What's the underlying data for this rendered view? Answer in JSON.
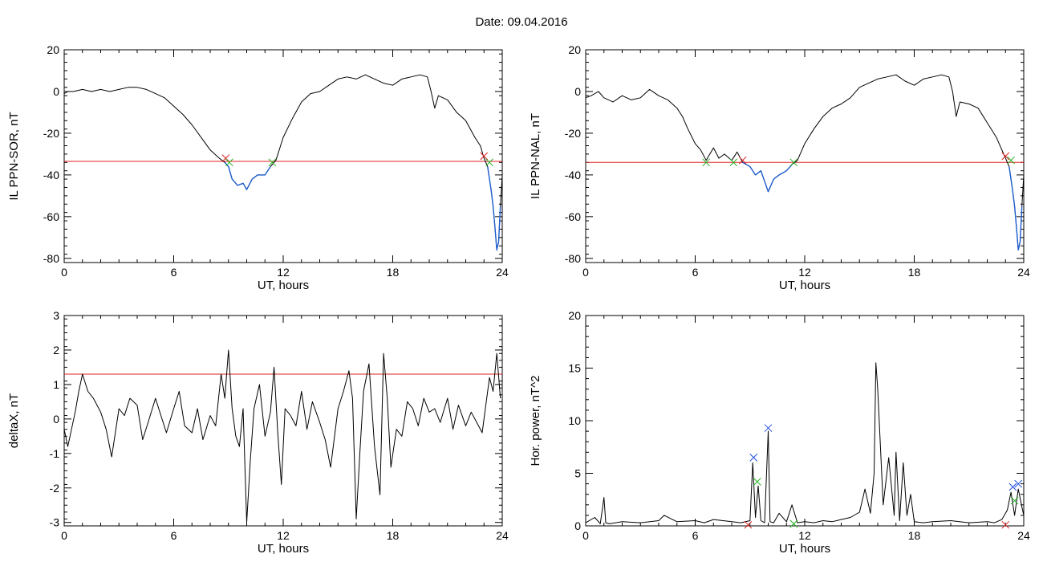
{
  "header": {
    "title": "Date:  09.04.2016"
  },
  "chart_data": [
    {
      "type": "line",
      "title": "",
      "xlabel": "UT, hours",
      "ylabel": "IL PPN-SOR, nT",
      "xlim": [
        0,
        24
      ],
      "ylim": [
        -82,
        20
      ],
      "xticks": [
        0,
        6,
        12,
        18,
        24
      ],
      "yticks": [
        -80,
        -60,
        -40,
        -20,
        0,
        20
      ],
      "threshold": -33.5,
      "series": [
        {
          "color": "#000000",
          "x": [
            0,
            0.2,
            0.5,
            1,
            1.5,
            2,
            2.5,
            3,
            3.5,
            4,
            4.5,
            5,
            5.5,
            6,
            6.5,
            7,
            7.5,
            8,
            8.5,
            8.8,
            9,
            9.2,
            9.5,
            9.8,
            10,
            10.3,
            10.6,
            11,
            11.3,
            11.6,
            12,
            12.5,
            13,
            13.5,
            14,
            14.5,
            15,
            15.5,
            16,
            16.5,
            17,
            17.5,
            18,
            18.5,
            19,
            19.5,
            19.9,
            20.1,
            20.3,
            20.5,
            21,
            21.5,
            22,
            22.5,
            22.8,
            23,
            23.2,
            23.4,
            23.5,
            23.6,
            23.7,
            23.8,
            23.9,
            24
          ],
          "y": [
            -1,
            0,
            0,
            1,
            0,
            1,
            0,
            1,
            2,
            2,
            1,
            -1,
            -3,
            -7,
            -11,
            -16,
            -22,
            -28,
            -32,
            -34,
            -36,
            -42,
            -45,
            -44,
            -47,
            -42,
            -40,
            -40,
            -36,
            -33,
            -22,
            -13,
            -5,
            -1,
            0,
            3,
            6,
            7,
            6,
            8,
            6,
            4,
            3,
            6,
            7,
            8,
            7,
            0,
            -8,
            -2,
            -4,
            -10,
            -14,
            -22,
            -26,
            -32,
            -36,
            -48,
            -55,
            -65,
            -76,
            -72,
            -55,
            -40
          ]
        },
        {
          "color": "#1f5fd0",
          "x": [
            8.8,
            9,
            9.2,
            9.5,
            9.8,
            10,
            10.3,
            10.6,
            11,
            11.3
          ],
          "y": [
            -34,
            -36,
            -42,
            -45,
            -44,
            -47,
            -42,
            -40,
            -40,
            -36
          ]
        },
        {
          "color": "#1f5fd0",
          "x": [
            23.2,
            23.4,
            23.5,
            23.6,
            23.7,
            23.8,
            23.9
          ],
          "y": [
            -36,
            -48,
            -55,
            -65,
            -76,
            -72,
            -55
          ]
        }
      ],
      "markers": [
        {
          "x": 8.85,
          "y": -32,
          "color": "#e02020"
        },
        {
          "x": 9.05,
          "y": -34,
          "color": "#20b020"
        },
        {
          "x": 11.4,
          "y": -34,
          "color": "#20b020"
        },
        {
          "x": 23.0,
          "y": -31,
          "color": "#e02020"
        },
        {
          "x": 23.3,
          "y": -34,
          "color": "#20b020"
        }
      ]
    },
    {
      "type": "line",
      "title": "",
      "xlabel": "UT, hours",
      "ylabel": "IL PPN-NAL, nT",
      "xlim": [
        0,
        24
      ],
      "ylim": [
        -82,
        20
      ],
      "xticks": [
        0,
        6,
        12,
        18,
        24
      ],
      "yticks": [
        -80,
        -60,
        -40,
        -20,
        0,
        20
      ],
      "threshold": -34,
      "series": [
        {
          "color": "#000000",
          "x": [
            0,
            0.3,
            0.7,
            1,
            1.5,
            2,
            2.5,
            3,
            3.5,
            4,
            4.5,
            5,
            5.3,
            5.6,
            6,
            6.3,
            6.6,
            7,
            7.3,
            7.6,
            8,
            8.3,
            8.6,
            9,
            9.3,
            9.6,
            10,
            10.3,
            10.6,
            11,
            11.3,
            11.6,
            12,
            12.5,
            13,
            13.5,
            14,
            14.5,
            15,
            15.5,
            16,
            16.5,
            17,
            17.5,
            18,
            18.5,
            19,
            19.5,
            19.9,
            20.1,
            20.3,
            20.5,
            21,
            21.5,
            22,
            22.5,
            22.8,
            23,
            23.2,
            23.4,
            23.5,
            23.6,
            23.7,
            23.8,
            23.9,
            24
          ],
          "y": [
            -3,
            -2,
            0,
            -3,
            -5,
            -2,
            -4,
            -3,
            1,
            -2,
            -4,
            -8,
            -12,
            -18,
            -25,
            -28,
            -33,
            -27,
            -32,
            -30,
            -33,
            -29,
            -34,
            -36,
            -40,
            -38,
            -48,
            -42,
            -40,
            -38,
            -35,
            -33,
            -25,
            -18,
            -12,
            -8,
            -6,
            -3,
            2,
            4,
            6,
            7,
            8,
            5,
            3,
            6,
            7,
            8,
            7,
            0,
            -12,
            -5,
            -6,
            -8,
            -15,
            -22,
            -28,
            -32,
            -36,
            -48,
            -55,
            -65,
            -76,
            -72,
            -55,
            -40
          ]
        },
        {
          "color": "#1f5fd0",
          "x": [
            8.6,
            9,
            9.3,
            9.6,
            10,
            10.3,
            10.6,
            11,
            11.3
          ],
          "y": [
            -34,
            -36,
            -40,
            -38,
            -48,
            -42,
            -40,
            -38,
            -35
          ]
        },
        {
          "color": "#1f5fd0",
          "x": [
            23.2,
            23.4,
            23.5,
            23.6,
            23.7,
            23.8,
            23.9
          ],
          "y": [
            -36,
            -48,
            -55,
            -65,
            -76,
            -72,
            -55
          ]
        }
      ],
      "markers": [
        {
          "x": 6.6,
          "y": -34,
          "color": "#20b020"
        },
        {
          "x": 8.1,
          "y": -34,
          "color": "#20b020"
        },
        {
          "x": 8.6,
          "y": -33,
          "color": "#e02020"
        },
        {
          "x": 11.4,
          "y": -34,
          "color": "#20b020"
        },
        {
          "x": 23.0,
          "y": -31,
          "color": "#e02020"
        },
        {
          "x": 23.3,
          "y": -33,
          "color": "#20b020"
        }
      ]
    },
    {
      "type": "line",
      "title": "",
      "xlabel": "UT, hours",
      "ylabel": "deltaX, nT",
      "xlim": [
        0,
        24
      ],
      "ylim": [
        -3.1,
        3
      ],
      "xticks": [
        0,
        6,
        12,
        18,
        24
      ],
      "yticks": [
        -3,
        -2,
        -1,
        0,
        1,
        2,
        3
      ],
      "threshold": 1.3,
      "series": [
        {
          "color": "#000000",
          "x": [
            0,
            0.2,
            0.4,
            0.6,
            0.8,
            1,
            1.3,
            1.6,
            2,
            2.3,
            2.6,
            3,
            3.3,
            3.6,
            4,
            4.3,
            4.6,
            5,
            5.3,
            5.6,
            6,
            6.3,
            6.6,
            7,
            7.3,
            7.6,
            8,
            8.3,
            8.6,
            8.8,
            9,
            9.2,
            9.4,
            9.6,
            9.8,
            10,
            10.2,
            10.4,
            10.7,
            11,
            11.3,
            11.5,
            11.7,
            11.9,
            12.1,
            12.4,
            12.7,
            13,
            13.3,
            13.6,
            14,
            14.3,
            14.6,
            15,
            15.3,
            15.6,
            15.8,
            16,
            16.2,
            16.4,
            16.7,
            17,
            17.3,
            17.5,
            17.7,
            17.9,
            18.2,
            18.5,
            18.8,
            19.1,
            19.4,
            19.7,
            20,
            20.3,
            20.6,
            21,
            21.3,
            21.6,
            22,
            22.3,
            22.6,
            22.9,
            23.1,
            23.3,
            23.5,
            23.7,
            23.9
          ],
          "y": [
            -0.3,
            -0.8,
            -0.3,
            0.2,
            0.8,
            1.3,
            0.8,
            0.6,
            0.2,
            -0.3,
            -1.1,
            0.3,
            0.1,
            0.6,
            0.4,
            -0.6,
            -0.1,
            0.6,
            0.1,
            -0.4,
            0.3,
            0.8,
            -0.2,
            -0.4,
            0.3,
            -0.6,
            0.1,
            -0.2,
            1.3,
            0.6,
            2.0,
            0.3,
            -0.5,
            -0.8,
            0.3,
            -3.0,
            -1.2,
            0.3,
            1.0,
            -0.5,
            0.2,
            1.5,
            -0.4,
            -1.9,
            0.3,
            0.1,
            -0.2,
            0.8,
            -0.3,
            0.5,
            -0.1,
            -0.6,
            -1.4,
            0.3,
            0.8,
            1.4,
            0.6,
            -2.9,
            -1.0,
            0.8,
            1.6,
            -0.8,
            -2.2,
            1.9,
            0.6,
            -1.4,
            -0.3,
            -0.5,
            0.5,
            0.3,
            -0.2,
            0.6,
            0.2,
            0.3,
            -0.1,
            0.6,
            -0.3,
            0.4,
            -0.2,
            0.2,
            -0.1,
            -0.4,
            0.4,
            1.2,
            0.8,
            1.9,
            0.6
          ]
        }
      ],
      "markers": []
    },
    {
      "type": "line",
      "title": "",
      "xlabel": "UT, hours",
      "ylabel": "Hor. power, nT^2",
      "xlim": [
        0,
        24
      ],
      "ylim": [
        0,
        20
      ],
      "xticks": [
        0,
        6,
        12,
        18,
        24
      ],
      "yticks": [
        0,
        5,
        10,
        15,
        20
      ],
      "series": [
        {
          "color": "#000000",
          "x": [
            0,
            0.5,
            0.8,
            1,
            1.1,
            1.3,
            2,
            3,
            4,
            4.3,
            5,
            6,
            6.5,
            7,
            8,
            8.5,
            9,
            9.15,
            9.3,
            9.45,
            9.6,
            9.8,
            10,
            10.1,
            10.3,
            10.6,
            11,
            11.3,
            11.6,
            12,
            12.5,
            13,
            13.5,
            14,
            14.5,
            15,
            15.3,
            15.6,
            15.8,
            15.9,
            16,
            16.3,
            16.6,
            16.9,
            17,
            17.2,
            17.4,
            17.6,
            17.8,
            18,
            18.5,
            19,
            20,
            21,
            22,
            22.4,
            22.8,
            23.1,
            23.3,
            23.5,
            23.7,
            23.9,
            24
          ],
          "y": [
            0.3,
            0.8,
            0.2,
            2.7,
            0.3,
            0.2,
            0.4,
            0.3,
            0.5,
            1.0,
            0.4,
            0.5,
            0.3,
            0.6,
            0.4,
            0.3,
            0.5,
            6.0,
            0.8,
            3.8,
            0.5,
            0.3,
            9.0,
            0.4,
            0.3,
            1.2,
            0.4,
            2.0,
            0.3,
            0.4,
            0.3,
            0.5,
            0.4,
            0.6,
            0.8,
            1.3,
            3.5,
            1.2,
            5.0,
            15.5,
            13.0,
            2.0,
            6.5,
            1.0,
            7.0,
            0.5,
            6.0,
            1.0,
            3.0,
            0.4,
            0.3,
            0.4,
            0.5,
            0.3,
            0.4,
            0.3,
            0.6,
            1.5,
            3.2,
            1.0,
            3.5,
            1.8,
            1.0
          ]
        }
      ],
      "markers": [
        {
          "x": 8.9,
          "y": 0.1,
          "color": "#e02020"
        },
        {
          "x": 9.2,
          "y": 6.5,
          "color": "#2050e0"
        },
        {
          "x": 9.4,
          "y": 4.2,
          "color": "#20b020"
        },
        {
          "x": 10.0,
          "y": 9.3,
          "color": "#2050e0"
        },
        {
          "x": 11.4,
          "y": 0.2,
          "color": "#20b020"
        },
        {
          "x": 23.0,
          "y": 0.1,
          "color": "#e02020"
        },
        {
          "x": 23.4,
          "y": 3.7,
          "color": "#2050e0"
        },
        {
          "x": 23.7,
          "y": 4.0,
          "color": "#2050e0"
        },
        {
          "x": 23.5,
          "y": 2.4,
          "color": "#20b020"
        }
      ]
    }
  ]
}
